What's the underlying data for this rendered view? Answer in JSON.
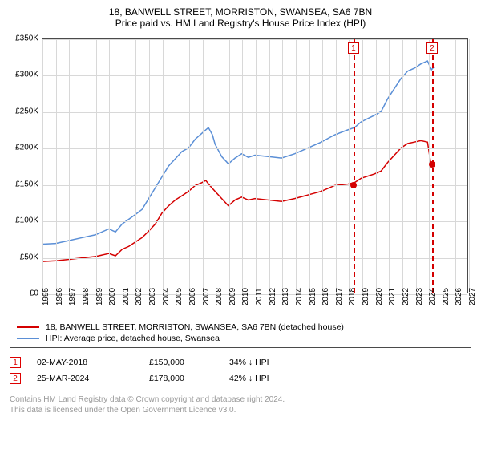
{
  "title": "18, BANWELL STREET, MORRISTON, SWANSEA, SA6 7BN",
  "subtitle": "Price paid vs. HM Land Registry's House Price Index (HPI)",
  "chart": {
    "type": "line",
    "xlim": [
      1995,
      2027
    ],
    "ylim": [
      0,
      350000
    ],
    "ytick_step": 50000,
    "yticks_labels": [
      "£0",
      "£50K",
      "£100K",
      "£150K",
      "£200K",
      "£250K",
      "£300K",
      "£350K"
    ],
    "xticks": [
      1995,
      1996,
      1997,
      1998,
      1999,
      2000,
      2001,
      2002,
      2003,
      2004,
      2005,
      2006,
      2007,
      2008,
      2009,
      2010,
      2011,
      2012,
      2013,
      2014,
      2015,
      2016,
      2017,
      2018,
      2019,
      2020,
      2021,
      2022,
      2023,
      2024,
      2025,
      2026,
      2027
    ],
    "background_color": "#ffffff",
    "grid_color": "#d8d8d8",
    "border_color": "#4a4a4a",
    "series": [
      {
        "name": "property",
        "color": "#d40000",
        "width": 1.5,
        "data": [
          [
            1995,
            43000
          ],
          [
            1996,
            44000
          ],
          [
            1997,
            46000
          ],
          [
            1998,
            48000
          ],
          [
            1999,
            50000
          ],
          [
            2000,
            54000
          ],
          [
            2000.5,
            51000
          ],
          [
            2001,
            60000
          ],
          [
            2001.5,
            64000
          ],
          [
            2002,
            70000
          ],
          [
            2002.5,
            76000
          ],
          [
            2003,
            85000
          ],
          [
            2003.5,
            95000
          ],
          [
            2004,
            110000
          ],
          [
            2004.5,
            120000
          ],
          [
            2005,
            128000
          ],
          [
            2005.5,
            134000
          ],
          [
            2006,
            140000
          ],
          [
            2006.5,
            148000
          ],
          [
            2007,
            152000
          ],
          [
            2007.3,
            155000
          ],
          [
            2007.6,
            148000
          ],
          [
            2008,
            140000
          ],
          [
            2008.5,
            130000
          ],
          [
            2009,
            120000
          ],
          [
            2009.5,
            128000
          ],
          [
            2010,
            132000
          ],
          [
            2010.5,
            128000
          ],
          [
            2011,
            130000
          ],
          [
            2012,
            128000
          ],
          [
            2013,
            126000
          ],
          [
            2014,
            130000
          ],
          [
            2015,
            135000
          ],
          [
            2016,
            140000
          ],
          [
            2017,
            148000
          ],
          [
            2018,
            150000
          ],
          [
            2018.5,
            152000
          ],
          [
            2019,
            158000
          ],
          [
            2020,
            164000
          ],
          [
            2020.5,
            168000
          ],
          [
            2021,
            180000
          ],
          [
            2021.5,
            190000
          ],
          [
            2022,
            200000
          ],
          [
            2022.5,
            206000
          ],
          [
            2023,
            208000
          ],
          [
            2023.5,
            210000
          ],
          [
            2024,
            208000
          ],
          [
            2024.25,
            178000
          ]
        ]
      },
      {
        "name": "hpi",
        "color": "#5b8fd6",
        "width": 1.5,
        "data": [
          [
            1995,
            67000
          ],
          [
            1996,
            68000
          ],
          [
            1997,
            72000
          ],
          [
            1998,
            76000
          ],
          [
            1999,
            80000
          ],
          [
            2000,
            88000
          ],
          [
            2000.5,
            84000
          ],
          [
            2001,
            95000
          ],
          [
            2002,
            108000
          ],
          [
            2002.5,
            115000
          ],
          [
            2003,
            130000
          ],
          [
            2003.5,
            145000
          ],
          [
            2004,
            160000
          ],
          [
            2004.5,
            175000
          ],
          [
            2005,
            185000
          ],
          [
            2005.5,
            195000
          ],
          [
            2006,
            200000
          ],
          [
            2006.5,
            212000
          ],
          [
            2007,
            220000
          ],
          [
            2007.3,
            225000
          ],
          [
            2007.5,
            228000
          ],
          [
            2007.8,
            218000
          ],
          [
            2008,
            205000
          ],
          [
            2008.5,
            188000
          ],
          [
            2009,
            178000
          ],
          [
            2009.5,
            186000
          ],
          [
            2010,
            192000
          ],
          [
            2010.5,
            187000
          ],
          [
            2011,
            190000
          ],
          [
            2012,
            188000
          ],
          [
            2013,
            186000
          ],
          [
            2014,
            192000
          ],
          [
            2015,
            200000
          ],
          [
            2016,
            208000
          ],
          [
            2017,
            218000
          ],
          [
            2018,
            225000
          ],
          [
            2018.5,
            228000
          ],
          [
            2019,
            236000
          ],
          [
            2020,
            245000
          ],
          [
            2020.5,
            250000
          ],
          [
            2021,
            268000
          ],
          [
            2021.5,
            282000
          ],
          [
            2022,
            296000
          ],
          [
            2022.5,
            306000
          ],
          [
            2023,
            310000
          ],
          [
            2023.5,
            316000
          ],
          [
            2024,
            320000
          ],
          [
            2024.3,
            308000
          ],
          [
            2024.5,
            312000
          ]
        ]
      }
    ],
    "markers": [
      {
        "num": "1",
        "x": 2018.33,
        "y": 150000,
        "color": "#d40000"
      },
      {
        "num": "2",
        "x": 2024.23,
        "y": 178000,
        "color": "#d40000"
      }
    ],
    "marker_box_color": "#d40000",
    "marker_line_dash": "dashed"
  },
  "legend": {
    "items": [
      {
        "color": "#d40000",
        "label": "18, BANWELL STREET, MORRISTON, SWANSEA, SA6 7BN (detached house)"
      },
      {
        "color": "#5b8fd6",
        "label": "HPI: Average price, detached house, Swansea"
      }
    ]
  },
  "events": [
    {
      "num": "1",
      "date": "02-MAY-2018",
      "price": "£150,000",
      "pct": "34% ↓ HPI"
    },
    {
      "num": "2",
      "date": "25-MAR-2024",
      "price": "£178,000",
      "pct": "42% ↓ HPI"
    }
  ],
  "disclaimer_line1": "Contains HM Land Registry data © Crown copyright and database right 2024.",
  "disclaimer_line2": "This data is licensed under the Open Government Licence v3.0."
}
